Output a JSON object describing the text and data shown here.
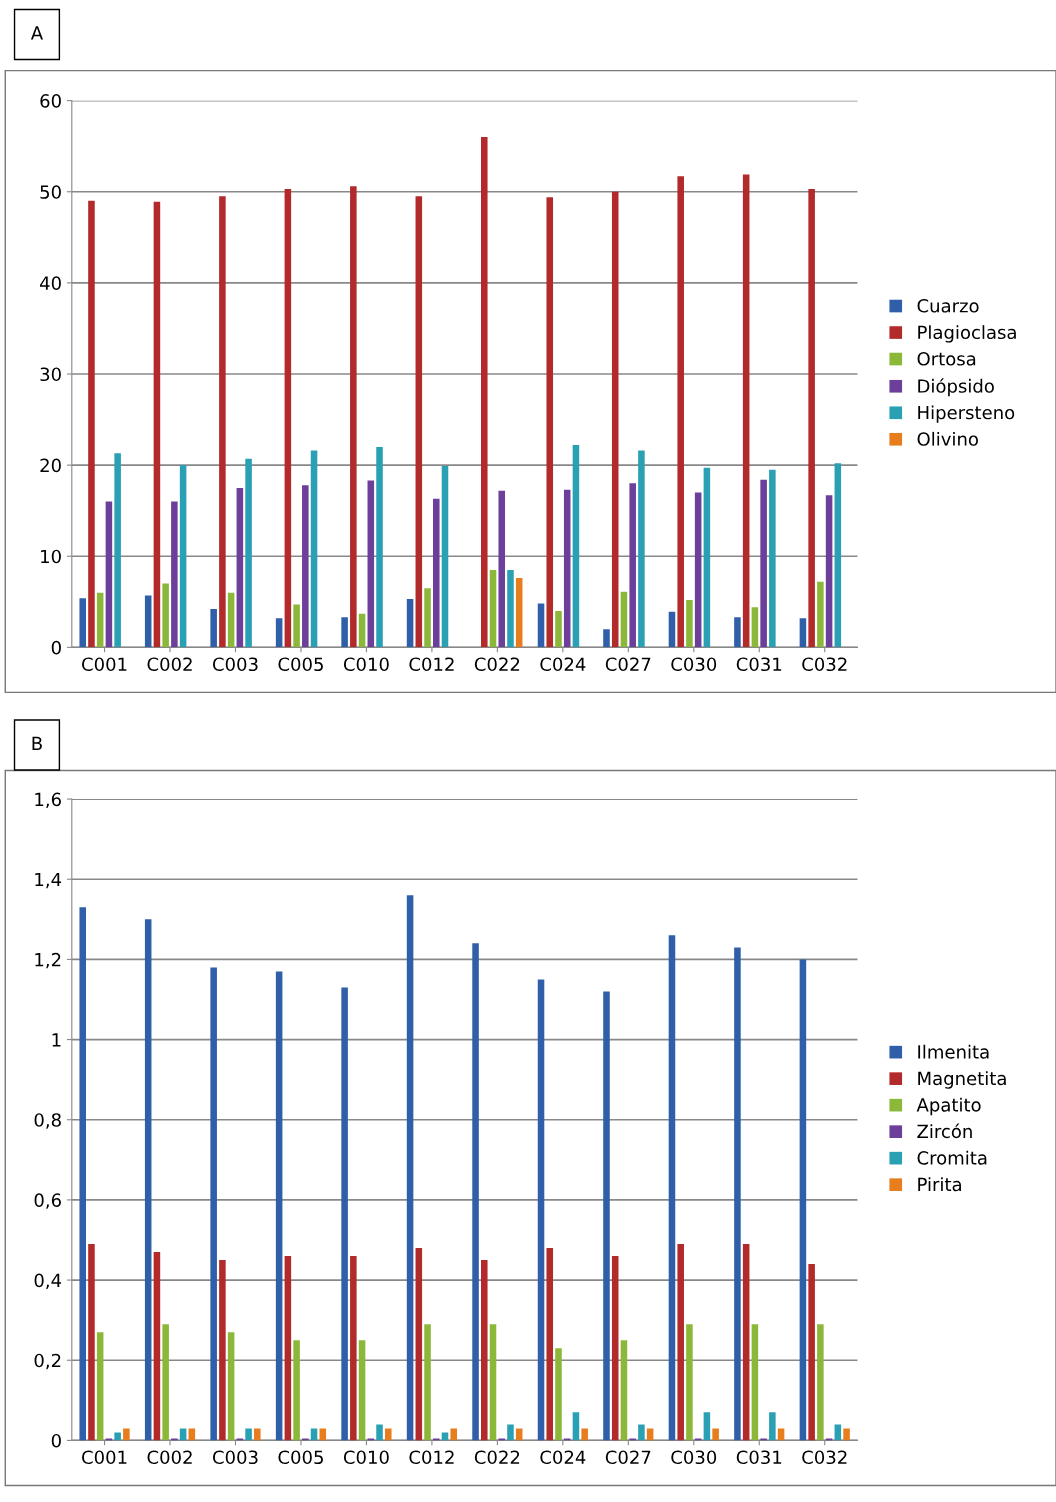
{
  "chart_data": [
    {
      "type": "bar",
      "title": "A",
      "categories": [
        "C001",
        "C002",
        "C003",
        "C005",
        "C010",
        "C012",
        "C022",
        "C024",
        "C027",
        "C030",
        "C031",
        "C032"
      ],
      "series": [
        {
          "name": "Cuarzo",
          "color": "#2e5fa8",
          "values": [
            5.4,
            5.7,
            4.2,
            3.2,
            3.3,
            5.3,
            0,
            4.8,
            2,
            3.9,
            3.3,
            3.2
          ]
        },
        {
          "name": "Plagioclasa",
          "color": "#b22a2a",
          "values": [
            49,
            48.9,
            49.5,
            50.3,
            50.6,
            49.5,
            56,
            49.4,
            50,
            51.7,
            51.9,
            50.3
          ]
        },
        {
          "name": "Ortosa",
          "color": "#8cb83a",
          "values": [
            6,
            7,
            6,
            4.7,
            3.7,
            6.5,
            8.5,
            4,
            6.1,
            5.2,
            4.4,
            7.2
          ]
        },
        {
          "name": "Diópsido",
          "color": "#6b3f9a",
          "values": [
            16,
            16,
            17.5,
            17.8,
            18.3,
            16.3,
            17.2,
            17.3,
            18,
            17,
            18.4,
            16.7
          ]
        },
        {
          "name": "Hipersteno",
          "color": "#2aa0b5",
          "values": [
            21.3,
            20,
            20.7,
            21.6,
            22,
            19.9,
            8.5,
            22.2,
            21.6,
            19.7,
            19.5,
            20.2
          ]
        },
        {
          "name": "Olivino",
          "color": "#e87d1e",
          "values": [
            0,
            0,
            0,
            0,
            0,
            0,
            7.6,
            0,
            0,
            0,
            0,
            0
          ]
        }
      ],
      "ylim": [
        0,
        60
      ],
      "yticks": [
        0,
        10,
        20,
        30,
        40,
        50,
        60
      ],
      "grid": "y",
      "legend": "right"
    },
    {
      "type": "bar",
      "title": "B",
      "categories": [
        "C001",
        "C002",
        "C003",
        "C005",
        "C010",
        "C012",
        "C022",
        "C024",
        "C027",
        "C030",
        "C031",
        "C032"
      ],
      "series": [
        {
          "name": "Ilmenita",
          "color": "#2e5fa8",
          "values": [
            1.33,
            1.3,
            1.18,
            1.17,
            1.13,
            1.36,
            1.24,
            1.15,
            1.12,
            1.26,
            1.23,
            1.2
          ]
        },
        {
          "name": "Magnetita",
          "color": "#b22a2a",
          "values": [
            0.49,
            0.47,
            0.45,
            0.46,
            0.46,
            0.48,
            0.45,
            0.48,
            0.46,
            0.49,
            0.49,
            0.44
          ]
        },
        {
          "name": "Apatito",
          "color": "#8cb83a",
          "values": [
            0.27,
            0.29,
            0.27,
            0.25,
            0.25,
            0.29,
            0.29,
            0.23,
            0.25,
            0.29,
            0.29,
            0.29
          ]
        },
        {
          "name": "Zircón",
          "color": "#6b3f9a",
          "values": [
            0.005,
            0.005,
            0.005,
            0.005,
            0.005,
            0.005,
            0.005,
            0.005,
            0.005,
            0.005,
            0.005,
            0.005
          ]
        },
        {
          "name": "Cromita",
          "color": "#2aa0b5",
          "values": [
            0.02,
            0.03,
            0.03,
            0.03,
            0.04,
            0.02,
            0.04,
            0.07,
            0.04,
            0.07,
            0.07,
            0.04
          ]
        },
        {
          "name": "Pirita",
          "color": "#e87d1e",
          "values": [
            0.03,
            0.03,
            0.03,
            0.03,
            0.03,
            0.03,
            0.03,
            0.03,
            0.03,
            0.03,
            0.03,
            0.03
          ]
        }
      ],
      "ylim": [
        0,
        1.6
      ],
      "yticks": [
        0,
        {
          "value": 0.2,
          "label": "0,2"
        },
        {
          "value": 0.4,
          "label": "0,4"
        },
        {
          "value": 0.6,
          "label": "0,6"
        },
        {
          "value": 0.8,
          "label": "0,8"
        },
        1,
        {
          "value": 1.2,
          "label": "1,2"
        },
        {
          "value": 1.4,
          "label": "1,4"
        },
        {
          "value": 1.6,
          "label": "1,6"
        }
      ],
      "grid": "y",
      "legend": "right"
    }
  ]
}
